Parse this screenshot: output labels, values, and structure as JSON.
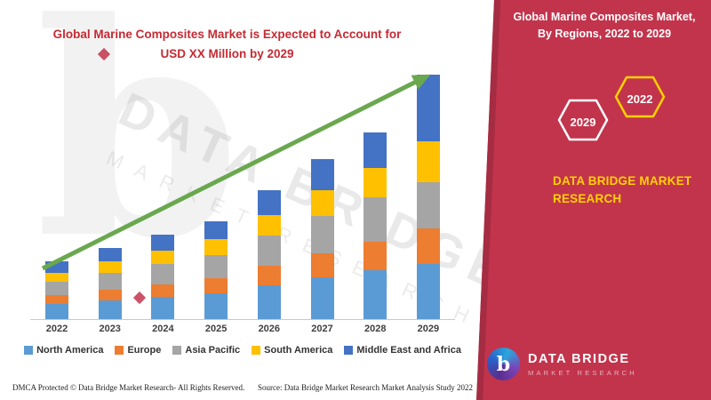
{
  "title": {
    "line1": "Global Marine Composites Market is Expected to Account for",
    "line2": "USD XX Million by 2029",
    "color": "#c42b33"
  },
  "banner": {
    "bg_color": "#c2344c",
    "title_line1": "Global Marine Composites Market,",
    "title_line2": "By Regions, 2022 to 2029",
    "hexagon_left": "2029",
    "hexagon_right": "2022",
    "hexagon_left_color": "#ffffff",
    "hexagon_right_color": "#ffd200",
    "brand_line1": "DATA BRIDGE MARKET",
    "brand_line2": "RESEARCH",
    "brand_color": "#ffd200"
  },
  "logo": {
    "glyph": "b",
    "name": "DATA BRIDGE",
    "tagline": "MARKET RESEARCH"
  },
  "watermark": {
    "big_glyph": "b",
    "line1": "DATA BRIDGE",
    "line2": "MARKET RESEARCH"
  },
  "footer": {
    "dmca": "DMCA Protected © Data Bridge Market Research- All Rights Reserved.",
    "source": "Source: Data Bridge Market Research Market Analysis Study 2022"
  },
  "chart_data": {
    "type": "bar",
    "stacked": true,
    "title": "Global Marine Composites Market is Expected to Account for USD XX Million by 2029",
    "categories": [
      "2022",
      "2023",
      "2024",
      "2025",
      "2026",
      "2027",
      "2028",
      "2029"
    ],
    "series": [
      {
        "name": "North America",
        "color": "#5b9bd5",
        "values": [
          17,
          21,
          25,
          29,
          38,
          47,
          55,
          62
        ]
      },
      {
        "name": "Europe",
        "color": "#ed7d31",
        "values": [
          10,
          12,
          14,
          17,
          22,
          27,
          32,
          40
        ]
      },
      {
        "name": "Asia Pacific",
        "color": "#a5a5a5",
        "values": [
          15,
          19,
          23,
          26,
          34,
          42,
          50,
          52
        ]
      },
      {
        "name": "South America",
        "color": "#ffc000",
        "values": [
          10,
          13,
          15,
          18,
          23,
          29,
          33,
          46
        ]
      },
      {
        "name": "Middle East and Africa",
        "color": "#4472c4",
        "values": [
          13,
          15,
          18,
          20,
          28,
          35,
          40,
          75
        ]
      }
    ],
    "totals": [
      65,
      80,
      95,
      110,
      145,
      180,
      210,
      275
    ],
    "xlabel": "",
    "ylabel": "",
    "ylim": [
      0,
      290
    ],
    "y_axis_shown": false,
    "gridlines": false,
    "legend_position": "bottom",
    "trend_arrow": {
      "color": "#6aa84f",
      "direction": "up-right"
    }
  }
}
